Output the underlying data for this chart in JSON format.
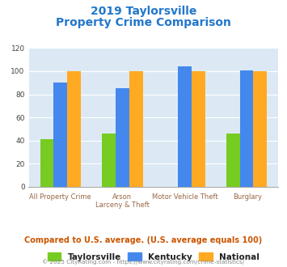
{
  "title_line1": "2019 Taylorsville",
  "title_line2": "Property Crime Comparison",
  "taylorsville": [
    41,
    46,
    0,
    46
  ],
  "kentucky": [
    90,
    85,
    104,
    101
  ],
  "national": [
    100,
    100,
    100,
    100
  ],
  "colors": {
    "taylorsville": "#77cc22",
    "kentucky": "#4488ee",
    "national": "#ffaa22"
  },
  "ylim": [
    0,
    120
  ],
  "yticks": [
    0,
    20,
    40,
    60,
    80,
    100,
    120
  ],
  "title_color": "#2277cc",
  "bg_color": "#dce9f5",
  "subtitle_note": "Compared to U.S. average. (U.S. average equals 100)",
  "footer": "© 2025 CityRating.com - https://www.cityrating.com/crime-statistics/",
  "legend_labels": [
    "Taylorsville",
    "Kentucky",
    "National"
  ],
  "xlabels_top": [
    "",
    "Arson",
    "Motor Vehicle Theft",
    ""
  ],
  "xlabels_bottom": [
    "All Property Crime",
    "Larceny & Theft",
    "",
    "Burglary"
  ]
}
